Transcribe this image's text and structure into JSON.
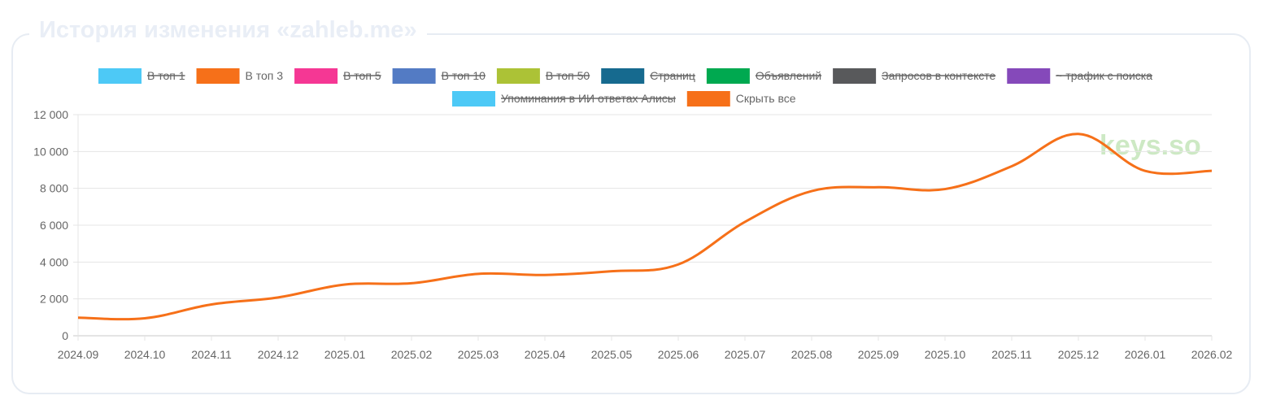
{
  "widget": {
    "title": "История изменения «zahleb.me»"
  },
  "watermark": {
    "text": "keys.so",
    "color": "#cde9c4"
  },
  "legend": {
    "items": [
      {
        "label": "В топ 1",
        "color": "#4dc9f6",
        "hidden": true
      },
      {
        "label": "В топ 3",
        "color": "#f67019",
        "hidden": false
      },
      {
        "label": "В топ 5",
        "color": "#f53794",
        "hidden": true
      },
      {
        "label": "В топ 10",
        "color": "#537bc4",
        "hidden": true
      },
      {
        "label": "В топ 50",
        "color": "#acc236",
        "hidden": true
      },
      {
        "label": "Страниц",
        "color": "#166a8f",
        "hidden": true
      },
      {
        "label": "Объявлений",
        "color": "#00a950",
        "hidden": true
      },
      {
        "label": "Запросов в контексте",
        "color": "#58595b",
        "hidden": true
      },
      {
        "label": "~ трафик с поиска",
        "color": "#8549ba",
        "hidden": true
      },
      {
        "label": "Упоминания в ИИ ответах Алисы",
        "color": "#4dc9f6",
        "hidden": true
      },
      {
        "label": "Скрыть все",
        "color": "#f67019",
        "hidden": false
      }
    ]
  },
  "chart_data": {
    "type": "line",
    "x": [
      "2024.09",
      "2024.10",
      "2024.11",
      "2024.12",
      "2025.01",
      "2025.02",
      "2025.03",
      "2025.04",
      "2025.05",
      "2025.06",
      "2025.07",
      "2025.08",
      "2025.09",
      "2025.10",
      "2025.11",
      "2025.12",
      "2026.01",
      "2026.02"
    ],
    "y_ticks": [
      "0",
      "2 000",
      "4 000",
      "6 000",
      "8 000",
      "10 000",
      "12 000"
    ],
    "ylim": [
      0,
      12000
    ],
    "grid": true,
    "legend_position": "top",
    "series": [
      {
        "name": "В топ 3",
        "color": "#f67019",
        "values": [
          980,
          950,
          1700,
          2080,
          2780,
          2850,
          3360,
          3300,
          3500,
          3870,
          6180,
          7850,
          8060,
          7960,
          9200,
          10950,
          8950,
          8950
        ]
      }
    ]
  }
}
